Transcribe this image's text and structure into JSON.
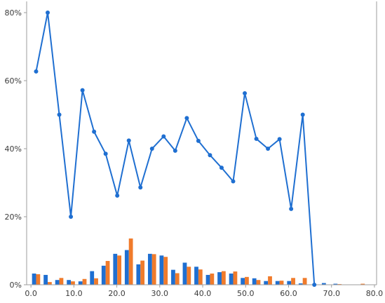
{
  "chart_data": {
    "type": "bar+line",
    "x_ticks": [
      "0.0",
      "10.0",
      "20.0",
      "30.0",
      "40.0",
      "50.0",
      "60.0",
      "70.0",
      "80.0"
    ],
    "y_ticks": [
      "0%",
      "20%",
      "40%",
      "60%",
      "80%"
    ],
    "xlim": [
      -1,
      80.5
    ],
    "ylim": [
      0,
      80
    ],
    "grid": false,
    "legend": "none",
    "colors": {
      "line": "#1f6fd1",
      "bar_a": "#1f6fd1",
      "bar_b": "#f07b2b",
      "axis": "#9e9e9e"
    },
    "line": {
      "x": [
        1.2,
        3.9,
        6.6,
        9.3,
        12.0,
        14.7,
        17.4,
        20.1,
        22.8,
        25.5,
        28.2,
        30.9,
        33.6,
        36.3,
        39.0,
        41.7,
        44.4,
        47.1,
        49.8,
        52.5,
        55.2,
        57.9,
        60.6,
        63.3,
        66.0
      ],
      "y": [
        62.7,
        80.0,
        50.0,
        20.0,
        57.2,
        45.0,
        38.5,
        26.2,
        42.4,
        28.6,
        40.0,
        43.6,
        39.4,
        49.0,
        42.3,
        38.1,
        34.4,
        30.4,
        56.3,
        42.9,
        40.0,
        42.8,
        22.3,
        50.0,
        0.0
      ]
    },
    "series": [
      {
        "x": [
          1.2,
          3.9,
          6.6,
          9.3,
          12.0,
          14.7,
          17.4,
          20.1,
          22.8,
          25.5,
          28.2,
          30.9,
          33.6,
          36.3,
          39.0,
          41.7,
          44.4,
          47.1,
          49.8,
          52.5,
          55.2,
          57.9,
          60.6,
          63.3,
          66.0,
          68.7,
          71.4,
          74.1,
          76.8,
          79.5
        ],
        "values": [
          3.3,
          2.9,
          1.4,
          1.4,
          1.0,
          4.0,
          5.6,
          9.1,
          10.2,
          6.0,
          9.1,
          8.6,
          4.4,
          6.5,
          5.3,
          2.9,
          3.7,
          3.3,
          2.0,
          1.9,
          1.1,
          1.1,
          1.1,
          0.4,
          0.05,
          0.5,
          0.3,
          0.1,
          0.1,
          0.05
        ]
      },
      {
        "x": [
          1.2,
          3.9,
          6.6,
          9.3,
          12.0,
          14.7,
          17.4,
          20.1,
          22.8,
          25.5,
          28.2,
          30.9,
          33.6,
          36.3,
          39.0,
          41.7,
          44.4,
          47.1,
          49.8,
          52.5,
          55.2,
          57.9,
          60.6,
          63.3,
          66.0,
          68.7,
          71.4,
          74.1,
          76.8,
          79.5
        ],
        "values": [
          3.1,
          0.8,
          2.0,
          1.0,
          1.7,
          1.9,
          7.0,
          8.6,
          13.6,
          7.1,
          9.0,
          8.2,
          3.4,
          5.3,
          4.5,
          3.3,
          4.0,
          3.9,
          2.3,
          1.4,
          2.5,
          1.2,
          2.0,
          2.0,
          0.0,
          0.1,
          0.2,
          0.05,
          0.3,
          0.0
        ]
      }
    ]
  }
}
